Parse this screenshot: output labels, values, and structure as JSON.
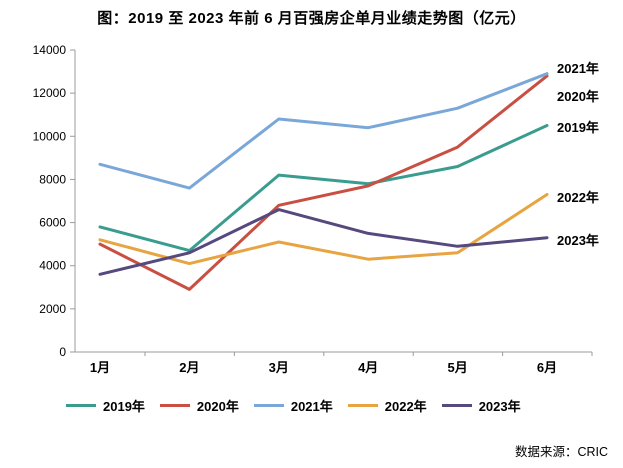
{
  "title": "图：2019 至 2023 年前 6 月百强房企单月业绩走势图（亿元）",
  "source": "数据来源：CRIC",
  "chart_data": {
    "type": "line",
    "title": "图：2019 至 2023 年前 6 月百强房企单月业绩走势图（亿元）",
    "categories": [
      "1月",
      "2月",
      "3月",
      "4月",
      "5月",
      "6月"
    ],
    "series": [
      {
        "name": "2019年",
        "color": "#3a9c8f",
        "values": [
          5800,
          4700,
          8200,
          7800,
          8600,
          10500
        ]
      },
      {
        "name": "2020年",
        "color": "#c94f43",
        "values": [
          5000,
          2900,
          6800,
          7700,
          9500,
          12800
        ]
      },
      {
        "name": "2021年",
        "color": "#79a7d8",
        "values": [
          8700,
          7600,
          10800,
          10400,
          11300,
          12900
        ]
      },
      {
        "name": "2022年",
        "color": "#e7a440",
        "values": [
          5200,
          4100,
          5100,
          4300,
          4600,
          7300
        ]
      },
      {
        "name": "2023年",
        "color": "#55497e",
        "values": [
          3600,
          4600,
          6600,
          5500,
          4900,
          5300
        ]
      }
    ],
    "ylim": [
      0,
      14000
    ],
    "ytick_step": 2000,
    "ytick_labels": [
      "0",
      "2000",
      "4000",
      "6000",
      "8000",
      "10000",
      "12000",
      "14000"
    ],
    "grid": false,
    "legend_position": "bottom",
    "legend_entries": [
      "2019年",
      "2020年",
      "2021年",
      "2022年",
      "2023年"
    ],
    "end_labels": [
      {
        "text": "2021年",
        "y": 68
      },
      {
        "text": "2020年",
        "y": 96
      },
      {
        "text": "2019年",
        "y": 127
      },
      {
        "text": "2022年",
        "y": 197
      },
      {
        "text": "2023年",
        "y": 240
      }
    ],
    "axis_color": "#9b9b9b",
    "text_color": "#000000"
  }
}
